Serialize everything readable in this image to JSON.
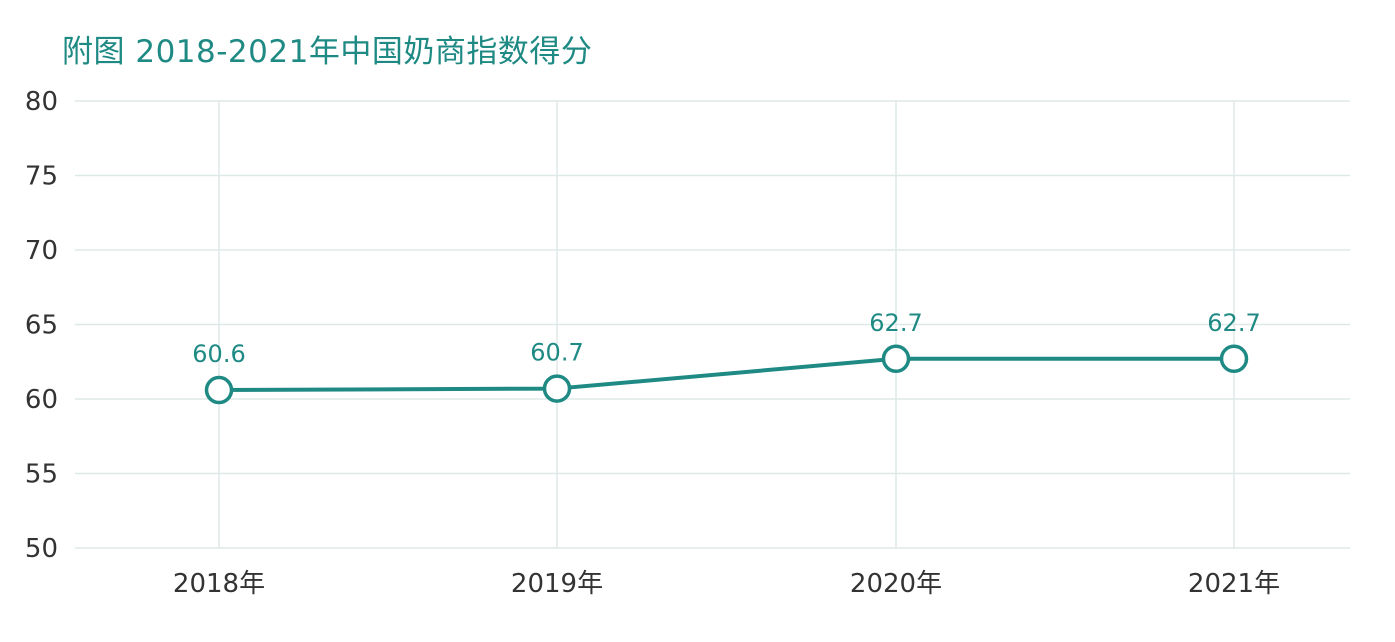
{
  "chart_data": {
    "type": "line",
    "title": "附图  2018-2021年中国奶商指数得分",
    "categories": [
      "2018年",
      "2019年",
      "2020年",
      "2021年"
    ],
    "series": [
      {
        "values": [
          60.6,
          60.7,
          62.7,
          62.7
        ],
        "labels": [
          "60.6",
          "60.7",
          "62.7",
          "62.7"
        ]
      }
    ],
    "xlabel": "",
    "ylabel": "",
    "ylim": [
      50,
      80
    ],
    "yticks": [
      50,
      55,
      60,
      65,
      70,
      75,
      80
    ],
    "grid": true,
    "legend": "none"
  },
  "colors": {
    "line": "#1f8a84",
    "title": "#1f8a84",
    "grid": "#dde9e8",
    "marker_fill": "#ffffff"
  }
}
